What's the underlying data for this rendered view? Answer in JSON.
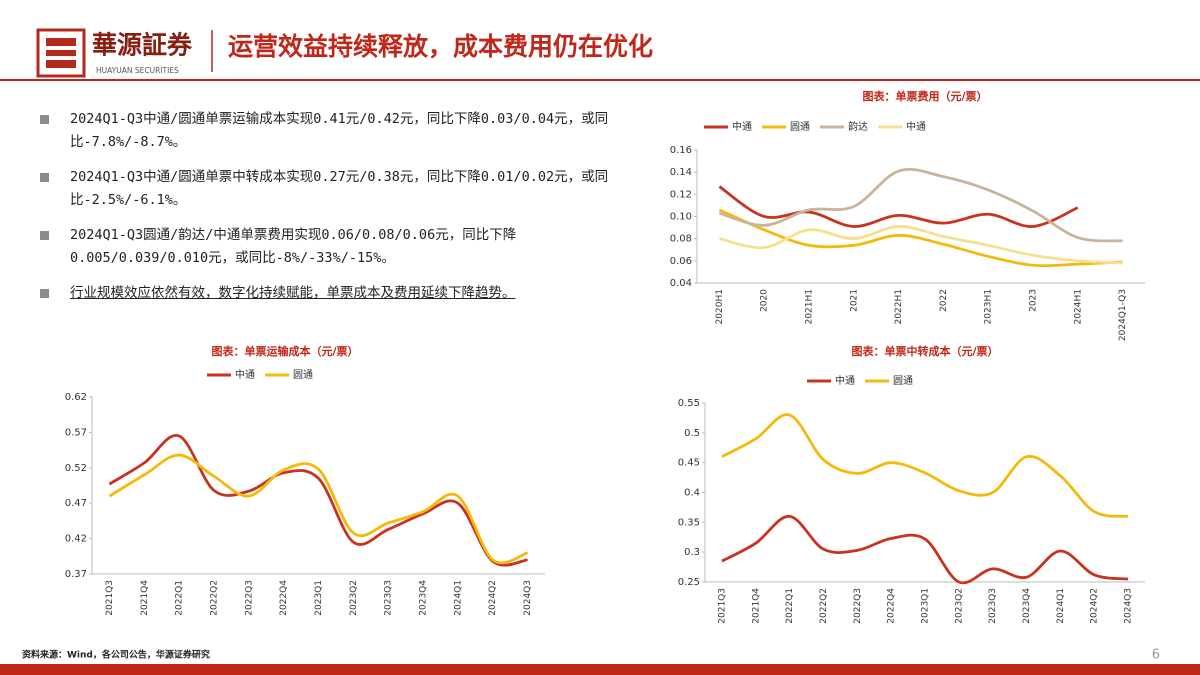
{
  "header": {
    "logo": "華源証券",
    "logo_sub": "HUAYUAN SECURITIES",
    "title": "运营效益持续释放，成本费用仍在优化"
  },
  "bullets": [
    "2024Q1-Q3中通/圆通单票运输成本实现0.41元/0.42元，同比下降0.03/0.04元，或同比-7.8%/-8.7%。",
    "2024Q1-Q3中通/圆通单票中转成本实现0.27元/0.38元，同比下降0.01/0.02元，或同比-2.5%/-6.1%。",
    "2024Q1-Q3圆通/韵达/中通单票费用实现0.06/0.08/0.06元，同比下降0.005/0.039/0.010元，或同比-8%/-33%/-15%。",
    "行业规模效应依然有效，数字化持续赋能，单票成本及费用延续下降趋势。"
  ],
  "footer": {
    "source": "资料来源：Wind，各公司公告，华源证券研究",
    "page": "6"
  },
  "chart_data": [
    {
      "type": "line",
      "title": "图表：单票费用（元/票）",
      "categories": [
        "2020H1",
        "2020",
        "2021H1",
        "2021",
        "2022H1",
        "2022",
        "2023H1",
        "2023",
        "2024H1",
        "2024Q1-Q3"
      ],
      "series": [
        {
          "name": "中通",
          "color": "#c8321e",
          "values": [
            0.127,
            0.1,
            0.104,
            0.091,
            0.101,
            0.094,
            0.102,
            0.091,
            0.108,
            null
          ]
        },
        {
          "name": "圆通",
          "color": "#f5b90a",
          "values": [
            0.106,
            0.088,
            0.074,
            0.074,
            0.083,
            0.075,
            0.064,
            0.056,
            0.057,
            0.059
          ]
        },
        {
          "name": "韵达",
          "color": "#c9b49a",
          "values": [
            0.103,
            0.092,
            0.106,
            0.109,
            0.141,
            0.136,
            0.124,
            0.105,
            0.081,
            0.078
          ]
        },
        {
          "name": "中通",
          "color": "#f7e08c",
          "values": [
            0.08,
            0.072,
            0.088,
            0.08,
            0.091,
            0.082,
            0.074,
            0.065,
            0.06,
            0.058
          ]
        }
      ],
      "ylim": [
        0.04,
        0.16
      ],
      "yticks": [
        0.04,
        0.06,
        0.08,
        {
          "value": 0.1,
          "label": "0.10"
        },
        0.12,
        0.14,
        0.16
      ]
    },
    {
      "type": "line",
      "title": "图表：单票运输成本（元/票）",
      "categories": [
        "2021Q3",
        "2021Q4",
        "2022Q1",
        "2022Q2",
        "2022Q3",
        "2022Q4",
        "2023Q1",
        "2023Q2",
        "2023Q3",
        "2023Q4",
        "2024Q1",
        "2024Q2",
        "2024Q3"
      ],
      "series": [
        {
          "name": "中通",
          "color": "#c8321e",
          "values": [
            0.497,
            0.527,
            0.565,
            0.488,
            0.487,
            0.513,
            0.505,
            0.415,
            0.433,
            0.455,
            0.47,
            0.388,
            0.39
          ]
        },
        {
          "name": "圆通",
          "color": "#f5b90a",
          "values": [
            0.48,
            0.51,
            0.538,
            0.508,
            0.48,
            0.517,
            0.518,
            0.428,
            0.442,
            0.458,
            0.48,
            0.39,
            0.4
          ]
        }
      ],
      "ylim": [
        0.37,
        0.62
      ],
      "yticks": [
        0.37,
        0.42,
        0.47,
        0.52,
        0.57,
        0.62
      ]
    },
    {
      "type": "line",
      "title": "图表：单票中转成本（元/票）",
      "categories": [
        "2021Q3",
        "2021Q4",
        "2022Q1",
        "2022Q2",
        "2022Q3",
        "2022Q4",
        "2023Q1",
        "2023Q2",
        "2023Q3",
        "2023Q4",
        "2024Q1",
        "2024Q2",
        "2024Q3"
      ],
      "series": [
        {
          "name": "中通",
          "color": "#c8321e",
          "values": [
            0.285,
            0.315,
            0.36,
            0.305,
            0.303,
            0.323,
            0.322,
            0.25,
            0.272,
            0.258,
            0.302,
            0.262,
            0.255
          ]
        },
        {
          "name": "圆通",
          "color": "#f5b90a",
          "values": [
            0.46,
            0.49,
            0.53,
            0.455,
            0.432,
            0.45,
            0.433,
            0.403,
            0.4,
            0.46,
            0.428,
            0.368,
            0.36
          ]
        }
      ],
      "ylim": [
        0.25,
        0.55
      ],
      "yticks": [
        0.25,
        0.3,
        0.35,
        0.4,
        0.45,
        0.5,
        0.55
      ]
    }
  ]
}
